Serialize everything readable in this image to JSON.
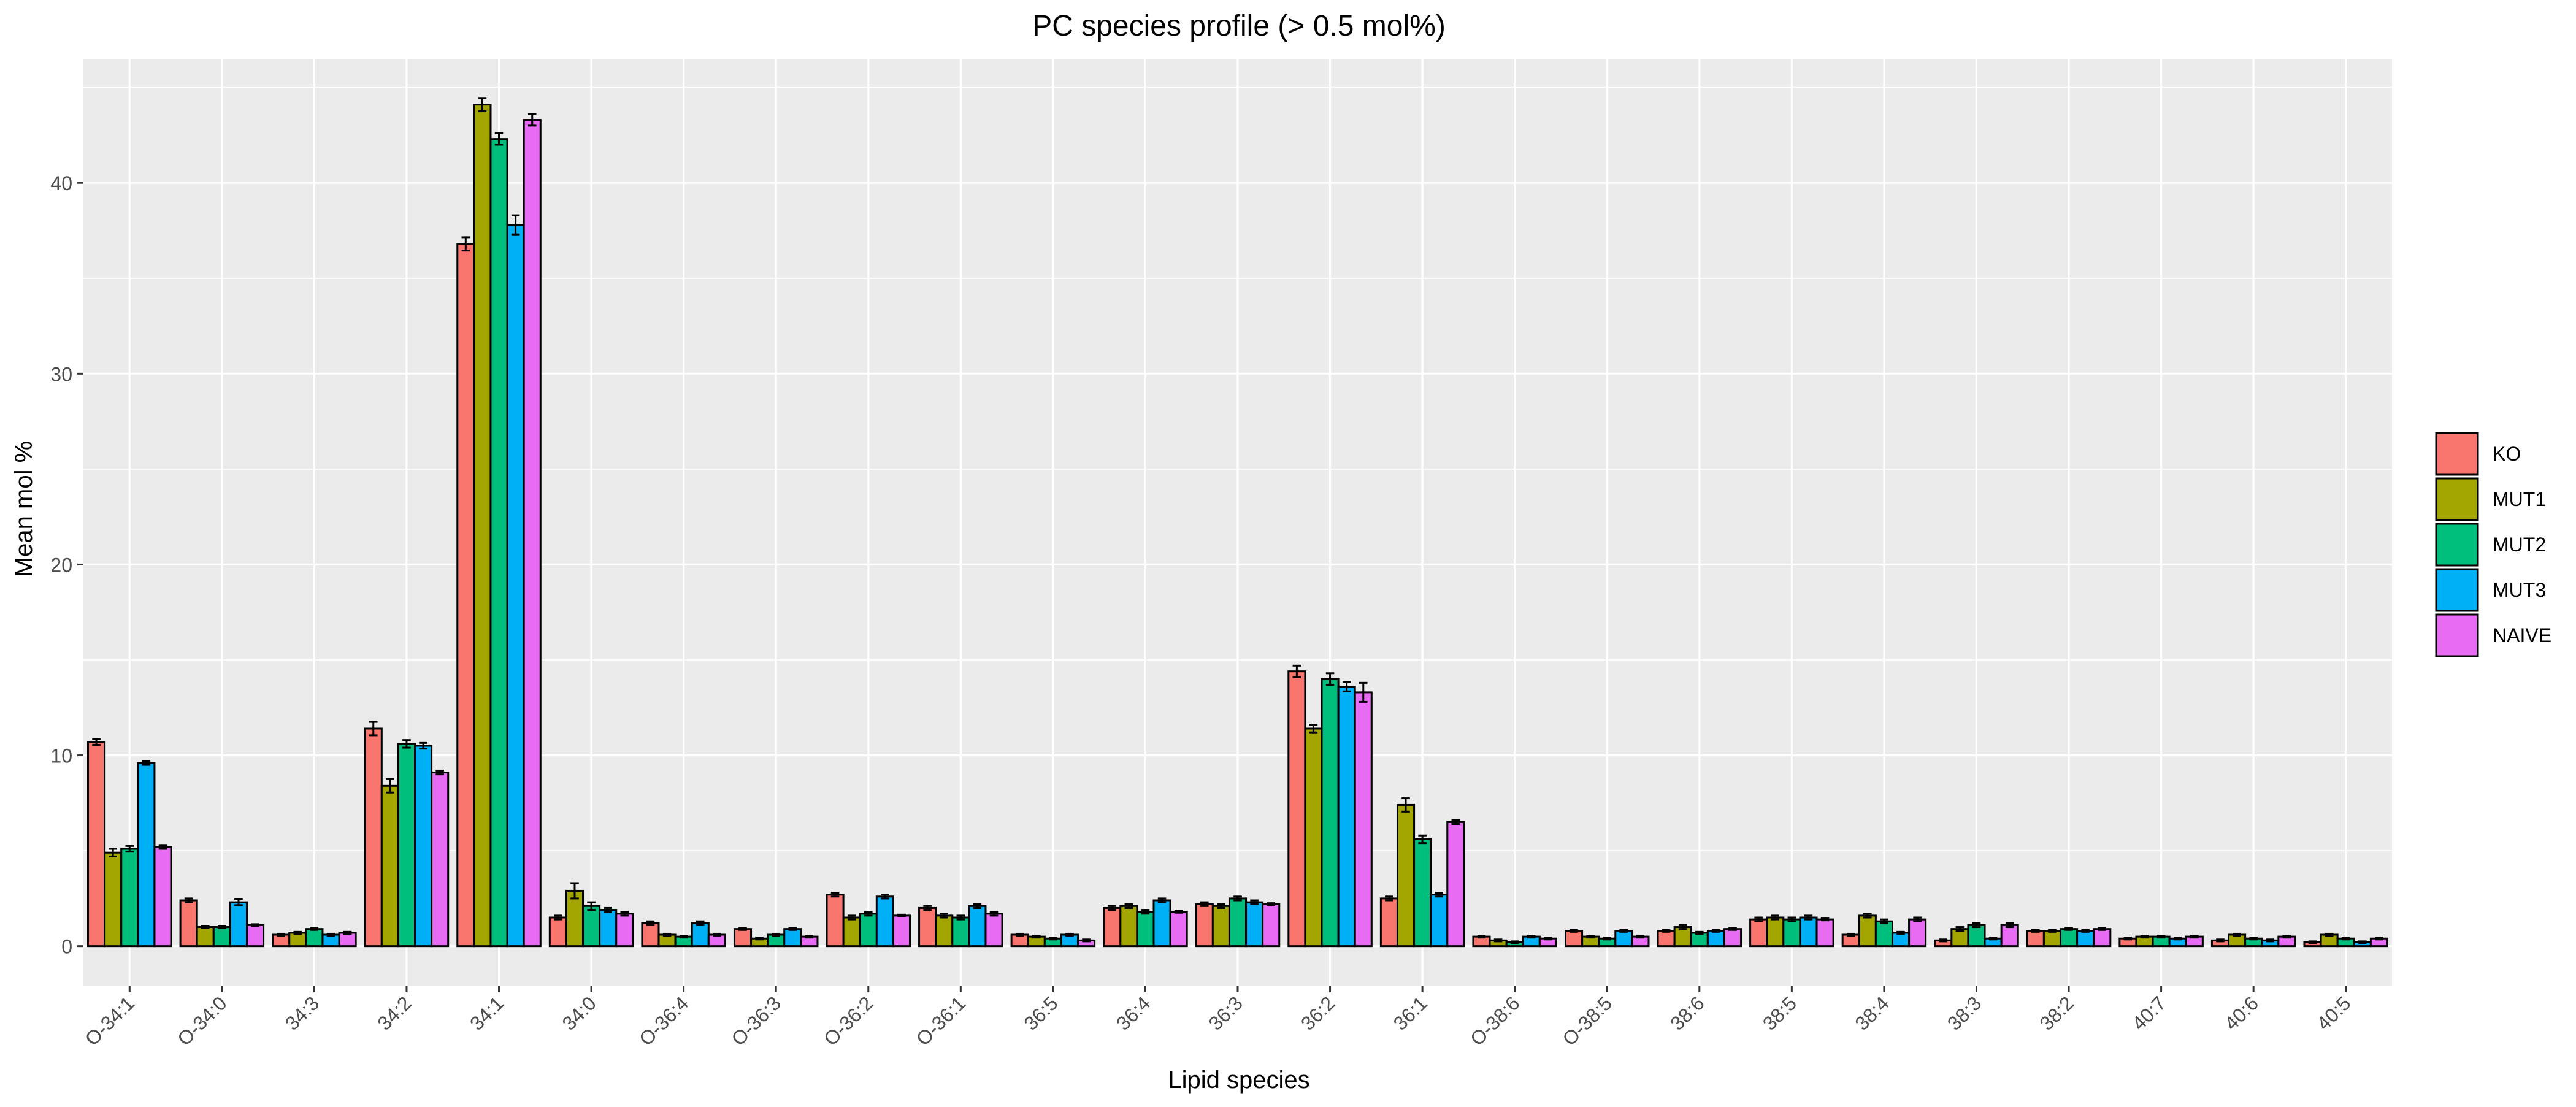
{
  "chart_data": {
    "type": "bar",
    "title": "PC species profile (> 0.5 mol%)",
    "xlabel": "Lipid species",
    "ylabel": "Mean mol %",
    "ylim": [
      -2.1,
      46.5
    ],
    "yticks": [
      0,
      10,
      20,
      30,
      40
    ],
    "grid": true,
    "legend_position": "right",
    "categories": [
      "O-34:1",
      "O-34:0",
      "34:3",
      "34:2",
      "34:1",
      "34:0",
      "O-36:4",
      "O-36:3",
      "O-36:2",
      "O-36:1",
      "36:5",
      "36:4",
      "36:3",
      "36:2",
      "36:1",
      "O-38:6",
      "O-38:5",
      "38:6",
      "38:5",
      "38:4",
      "38:3",
      "38:2",
      "40:7",
      "40:6",
      "40:5"
    ],
    "series": [
      {
        "name": "KO",
        "color": "#F8766D",
        "values": [
          10.7,
          2.4,
          0.6,
          11.4,
          36.8,
          1.5,
          1.2,
          0.9,
          2.7,
          2.0,
          0.6,
          2.0,
          2.2,
          14.4,
          2.5,
          0.5,
          0.8,
          0.8,
          1.4,
          0.6,
          0.3,
          0.8,
          0.4,
          0.3,
          0.2
        ],
        "errors": [
          0.15,
          0.1,
          0.05,
          0.35,
          0.35,
          0.1,
          0.1,
          0.05,
          0.1,
          0.1,
          0.05,
          0.1,
          0.1,
          0.3,
          0.1,
          0.05,
          0.05,
          0.05,
          0.1,
          0.05,
          0.05,
          0.05,
          0.05,
          0.05,
          0.05
        ]
      },
      {
        "name": "MUT1",
        "color": "#A3A500",
        "values": [
          4.9,
          1.0,
          0.7,
          8.4,
          44.1,
          2.9,
          0.6,
          0.4,
          1.5,
          1.6,
          0.5,
          2.1,
          2.1,
          11.4,
          7.4,
          0.3,
          0.5,
          1.0,
          1.5,
          1.6,
          0.9,
          0.8,
          0.5,
          0.6,
          0.6
        ],
        "errors": [
          0.2,
          0.05,
          0.05,
          0.35,
          0.35,
          0.4,
          0.05,
          0.05,
          0.1,
          0.1,
          0.05,
          0.1,
          0.1,
          0.2,
          0.35,
          0.05,
          0.05,
          0.1,
          0.1,
          0.1,
          0.1,
          0.05,
          0.05,
          0.05,
          0.05
        ]
      },
      {
        "name": "MUT2",
        "color": "#00BF7D",
        "values": [
          5.1,
          1.0,
          0.9,
          10.6,
          42.3,
          2.1,
          0.5,
          0.6,
          1.7,
          1.5,
          0.4,
          1.8,
          2.5,
          14.0,
          5.6,
          0.2,
          0.4,
          0.7,
          1.4,
          1.3,
          1.1,
          0.9,
          0.5,
          0.4,
          0.4
        ],
        "errors": [
          0.15,
          0.05,
          0.05,
          0.2,
          0.3,
          0.2,
          0.05,
          0.05,
          0.1,
          0.1,
          0.05,
          0.1,
          0.1,
          0.3,
          0.2,
          0.05,
          0.05,
          0.05,
          0.1,
          0.1,
          0.1,
          0.05,
          0.05,
          0.05,
          0.05
        ]
      },
      {
        "name": "MUT3",
        "color": "#00B0F6",
        "values": [
          9.6,
          2.3,
          0.6,
          10.5,
          37.8,
          1.9,
          1.2,
          0.9,
          2.6,
          2.1,
          0.6,
          2.4,
          2.3,
          13.6,
          2.7,
          0.5,
          0.8,
          0.8,
          1.5,
          0.7,
          0.4,
          0.8,
          0.4,
          0.3,
          0.2
        ],
        "errors": [
          0.1,
          0.15,
          0.05,
          0.15,
          0.5,
          0.1,
          0.1,
          0.05,
          0.1,
          0.1,
          0.05,
          0.1,
          0.1,
          0.25,
          0.1,
          0.05,
          0.05,
          0.05,
          0.1,
          0.05,
          0.05,
          0.05,
          0.05,
          0.05,
          0.05
        ]
      },
      {
        "name": "NAIVE",
        "color": "#E76BF3",
        "values": [
          5.2,
          1.1,
          0.7,
          9.1,
          43.3,
          1.7,
          0.6,
          0.5,
          1.6,
          1.7,
          0.3,
          1.8,
          2.2,
          13.3,
          6.5,
          0.4,
          0.5,
          0.9,
          1.4,
          1.4,
          1.1,
          0.9,
          0.5,
          0.5,
          0.4
        ],
        "errors": [
          0.1,
          0.05,
          0.05,
          0.1,
          0.3,
          0.1,
          0.05,
          0.05,
          0.05,
          0.1,
          0.05,
          0.05,
          0.05,
          0.5,
          0.1,
          0.05,
          0.05,
          0.05,
          0.05,
          0.1,
          0.1,
          0.05,
          0.05,
          0.05,
          0.05
        ]
      }
    ]
  }
}
